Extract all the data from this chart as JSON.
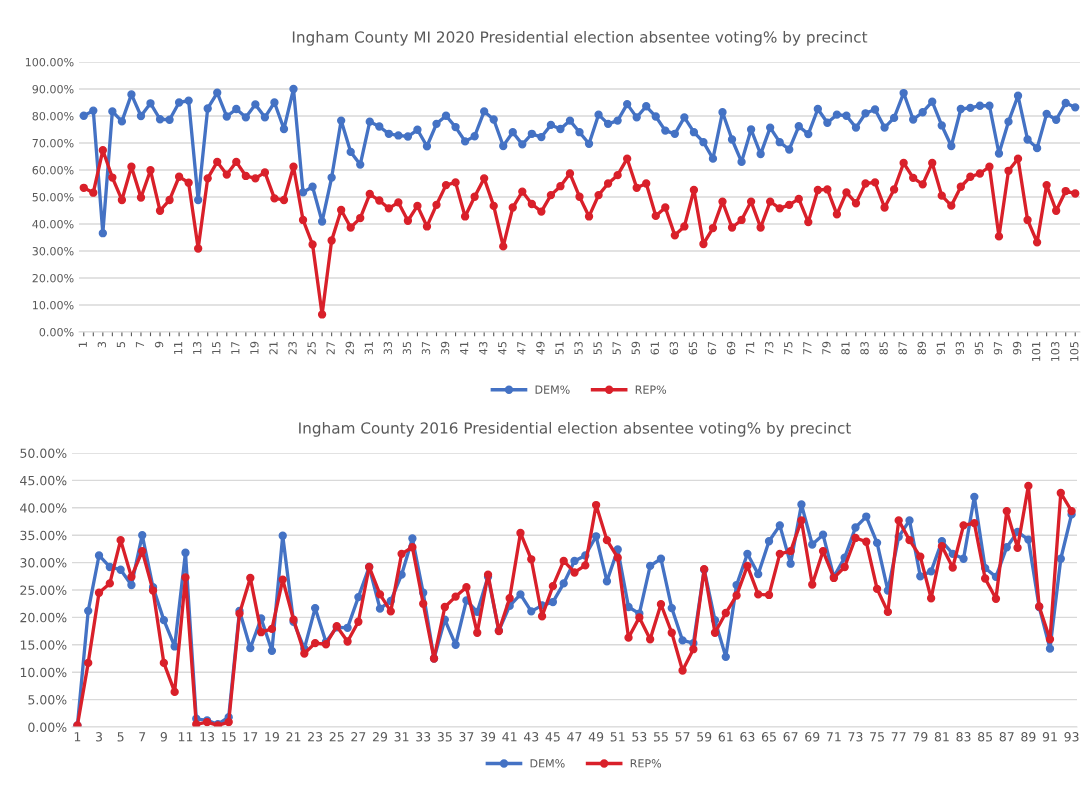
{
  "chart_data": [
    {
      "type": "line",
      "title": "Ingham County MI 2020 Presidential election absentee voting% by precinct",
      "categories": [
        "1",
        null,
        "3",
        null,
        "5",
        null,
        "7",
        null,
        "9",
        null,
        "11",
        null,
        "13",
        null,
        "15",
        null,
        "17",
        null,
        "19",
        null,
        "21",
        null,
        "23",
        null,
        "25",
        null,
        "27",
        null,
        "29",
        null,
        "31",
        null,
        "33",
        null,
        "35",
        null,
        "37",
        null,
        "39",
        null,
        "41",
        null,
        "43",
        null,
        "45",
        null,
        "47",
        null,
        "49",
        null,
        "51",
        null,
        "53",
        null,
        "55",
        null,
        "57",
        null,
        "59",
        null,
        "61",
        null,
        "63",
        null,
        "65",
        null,
        "67",
        null,
        "69",
        null,
        "71",
        null,
        "73",
        null,
        "75",
        null,
        "77",
        null,
        "79",
        null,
        "81",
        null,
        "83",
        null,
        "85",
        null,
        "87",
        null,
        "89",
        null,
        "91",
        null,
        "93",
        null,
        "95",
        null,
        "97",
        null,
        "99",
        null,
        "101",
        null,
        "103",
        null,
        "105"
      ],
      "series": [
        {
          "name": "DEM%",
          "color": "#4472c4",
          "values": [
            80.1,
            82,
            36.6,
            81.7,
            78,
            88,
            80,
            84.7,
            78.8,
            78.6,
            85,
            85.7,
            48.9,
            82.8,
            88.6,
            79.8,
            82.6,
            79.5,
            84.3,
            79.5,
            85,
            75.2,
            90,
            51.7,
            53.8,
            40.9,
            57.2,
            78.3,
            66.7,
            62,
            77.9,
            76.1,
            73.4,
            72.8,
            72.4,
            74.9,
            68.8,
            77.1,
            80.1,
            75.9,
            70.6,
            72.5,
            81.7,
            78.7,
            68.9,
            74,
            69.5,
            73.4,
            72.2,
            76.7,
            75.2,
            78.3,
            74,
            69.7,
            80.5,
            77.1,
            78.3,
            84.4,
            79.5,
            83.6,
            79.8,
            74.6,
            73.4,
            79.5,
            74,
            70.3,
            64.2,
            81.4,
            71.3,
            63,
            75,
            65.9,
            75.7,
            70.3,
            67.6,
            76.2,
            73.3,
            82.6,
            77.5,
            80.5,
            80.1,
            75.7,
            81,
            82.4,
            75.7,
            79.3,
            88.5,
            78.7,
            81.4,
            85.3,
            76.5,
            68.9,
            82.6,
            83,
            83.8,
            83.8,
            66.1,
            77.9,
            87.5,
            71.3,
            68.1,
            80.8,
            78.6,
            84.8,
            83.2
          ]
        },
        {
          "name": "REP%",
          "color": "#d9202a",
          "values": [
            53.4,
            51.6,
            67.3,
            57.2,
            48.9,
            61.2,
            49.8,
            59.9,
            44.9,
            48.9,
            57.5,
            55.3,
            30.9,
            56.9,
            63,
            58.3,
            63,
            57.8,
            56.9,
            59.1,
            49.5,
            48.9,
            61.2,
            41.5,
            32.4,
            6.5,
            33.9,
            45.2,
            38.7,
            42.2,
            51.1,
            48.7,
            45.8,
            48,
            41.2,
            46.7,
            39.1,
            47.1,
            54.4,
            55.4,
            42.8,
            50.1,
            56.9,
            46.7,
            31.7,
            46.1,
            52,
            47.4,
            44.6,
            50.7,
            54,
            58.7,
            50.1,
            42.8,
            50.7,
            55,
            58.1,
            64.2,
            53.4,
            55,
            43,
            46.1,
            35.8,
            39.1,
            52.6,
            32.6,
            38.5,
            48.3,
            38.7,
            41.5,
            48.3,
            38.7,
            48.3,
            45.8,
            47.1,
            49.3,
            40.7,
            52.6,
            52.8,
            43.6,
            51.7,
            47.7,
            55,
            55.4,
            46.1,
            52.8,
            62.6,
            57.1,
            54.7,
            62.6,
            50.5,
            46.8,
            53.8,
            57.5,
            58.7,
            61.2,
            35.4,
            59.7,
            64.2,
            41.5,
            33.2,
            54.4,
            44.9,
            52.2,
            51.3
          ]
        }
      ],
      "ylim": [
        0,
        100
      ],
      "yticks": [
        {
          "value": 0,
          "label": "0.00%"
        },
        {
          "value": 10,
          "label": "10.00%"
        },
        {
          "value": 20,
          "label": "20.00%"
        },
        {
          "value": 30,
          "label": "30.00%"
        },
        {
          "value": 40,
          "label": "40.00%"
        },
        {
          "value": 50,
          "label": "50.00%"
        },
        {
          "value": 60,
          "label": "60.00%"
        },
        {
          "value": 70,
          "label": "70.00%"
        },
        {
          "value": 80,
          "label": "80.00%"
        },
        {
          "value": 90,
          "label": "90.00%"
        },
        {
          "value": 100,
          "label": "100.00%"
        }
      ],
      "grid": "y",
      "legend": "bottom",
      "marker": "circle",
      "line_style": "solid"
    },
    {
      "type": "line",
      "title": "Ingham County 2016 Presidential election absentee voting% by precinct",
      "categories": [
        "1",
        null,
        "3",
        null,
        "5",
        null,
        "7",
        null,
        "9",
        null,
        "11",
        null,
        "13",
        null,
        "15",
        null,
        "17",
        null,
        "19",
        null,
        "21",
        null,
        "23",
        null,
        "25",
        null,
        "27",
        null,
        "29",
        null,
        "31",
        null,
        "33",
        null,
        "35",
        null,
        "37",
        null,
        "39",
        null,
        "41",
        null,
        "43",
        null,
        "45",
        null,
        "47",
        null,
        "49",
        null,
        "51",
        null,
        "53",
        null,
        "55",
        null,
        "57",
        null,
        "59",
        null,
        "61",
        null,
        "63",
        null,
        "65",
        null,
        "67",
        null,
        "69",
        null,
        "71",
        null,
        "73",
        null,
        "75",
        null,
        "77",
        null,
        "79",
        null,
        "81",
        null,
        "83",
        null,
        "85",
        null,
        "87",
        null,
        "89",
        null,
        "91",
        null,
        "93"
      ],
      "series": [
        {
          "name": "DEM%",
          "color": "#4472c4",
          "values": [
            0.3,
            21.2,
            31.3,
            29.2,
            28.7,
            25.9,
            35,
            25.5,
            19.5,
            14.7,
            31.8,
            1.5,
            1.2,
            0.5,
            1.8,
            21.2,
            14.4,
            19.8,
            13.9,
            34.9,
            19.2,
            14.3,
            21.7,
            15.5,
            18.2,
            18.1,
            23.7,
            29.2,
            21.6,
            23,
            27.8,
            34.4,
            24.5,
            12.5,
            19.6,
            15,
            23.1,
            21,
            27.4,
            17.6,
            22.1,
            24.2,
            21.1,
            22.2,
            22.8,
            26.2,
            30.3,
            31.3,
            34.8,
            26.6,
            32.4,
            21.9,
            20.7,
            29.4,
            30.7,
            21.7,
            15.8,
            15.3,
            28.7,
            19.5,
            12.8,
            25.9,
            31.6,
            27.9,
            33.9,
            36.8,
            29.8,
            40.6,
            33.3,
            35.1,
            27.4,
            30.9,
            36.4,
            38.4,
            33.6,
            24.9,
            34.7,
            37.7,
            27.5,
            28.4,
            33.9,
            31.6,
            30.7,
            42,
            29,
            27.4,
            32.8,
            35.6,
            34.2,
            21.9,
            14.3,
            30.7,
            38.8
          ]
        },
        {
          "name": "REP%",
          "color": "#d9202a",
          "values": [
            0.3,
            11.7,
            24.5,
            26.2,
            34.1,
            27.4,
            32.1,
            24.9,
            11.7,
            6.4,
            27.3,
            0.5,
            0.9,
            0.3,
            0.9,
            20.7,
            27.2,
            17.3,
            17.9,
            26.9,
            19.6,
            13.4,
            15.3,
            15.1,
            18.4,
            15.6,
            19.2,
            29.2,
            24.2,
            21.1,
            31.6,
            32.8,
            22.5,
            12.5,
            21.9,
            23.8,
            25.5,
            17.2,
            27.8,
            17.5,
            23.5,
            35.4,
            30.6,
            20.2,
            25.7,
            30.3,
            28.2,
            29.5,
            40.5,
            34.1,
            30.9,
            16.3,
            20,
            16,
            22.4,
            17.2,
            10.3,
            14.2,
            28.8,
            17.2,
            20.8,
            24,
            29.4,
            24.2,
            24.1,
            31.6,
            32.1,
            37.7,
            26,
            32.1,
            27.2,
            29.2,
            34.5,
            33.8,
            25.2,
            21,
            37.7,
            34.1,
            31.1,
            23.5,
            33,
            29.1,
            36.8,
            37.2,
            27.1,
            23.4,
            39.4,
            32.7,
            44,
            22,
            16,
            42.7,
            39.4
          ]
        }
      ],
      "ylim": [
        0,
        50
      ],
      "yticks": [
        {
          "value": 0,
          "label": "0.00%"
        },
        {
          "value": 5,
          "label": "5.00%"
        },
        {
          "value": 10,
          "label": "10.00%"
        },
        {
          "value": 15,
          "label": "15.00%"
        },
        {
          "value": 20,
          "label": "20.00%"
        },
        {
          "value": 25,
          "label": "25.00%"
        },
        {
          "value": 30,
          "label": "30.00%"
        },
        {
          "value": 35,
          "label": "35.00%"
        },
        {
          "value": 40,
          "label": "40.00%"
        },
        {
          "value": 45,
          "label": "45.00%"
        },
        {
          "value": 50,
          "label": "50.00%"
        }
      ],
      "grid": "y",
      "legend": "bottom",
      "marker": "circle",
      "line_style": "solid"
    }
  ]
}
